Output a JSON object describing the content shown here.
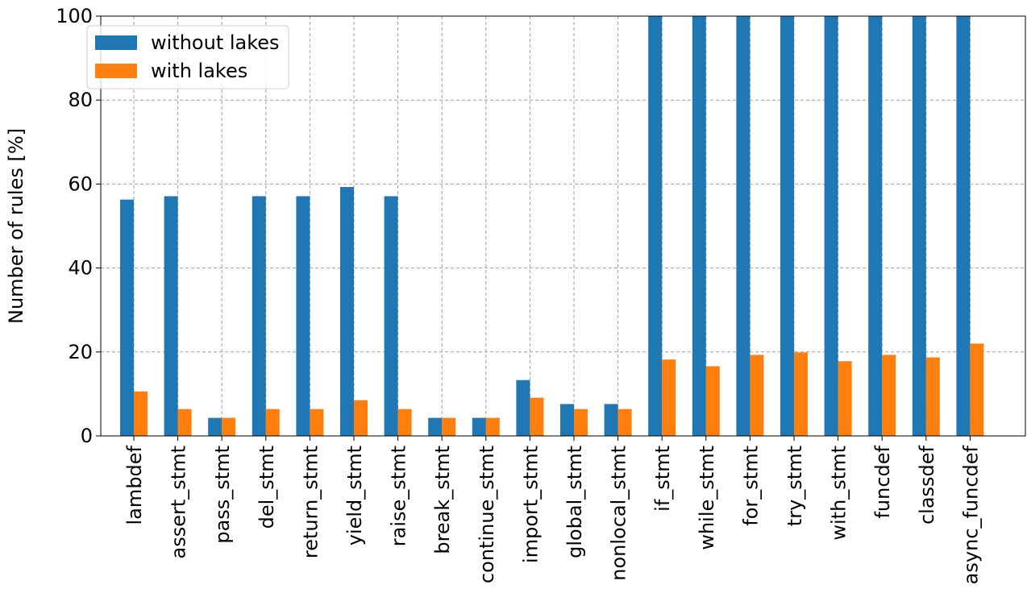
{
  "chart_data": {
    "type": "bar",
    "ylabel": "Number of rules [%]",
    "ylim": [
      0,
      100
    ],
    "yticks": [
      0,
      20,
      40,
      60,
      80,
      100
    ],
    "grid": true,
    "legend_position": "top-left",
    "categories": [
      "lambdef",
      "assert_stmt",
      "pass_stmt",
      "del_stmt",
      "return_stmt",
      "yield_stmt",
      "raise_stmt",
      "break_stmt",
      "continue_stmt",
      "import_stmt",
      "global_stmt",
      "nonlocal_stmt",
      "if_stmt",
      "while_stmt",
      "for_stmt",
      "try_stmt",
      "with_stmt",
      "funcdef",
      "classdef",
      "async_funcdef"
    ],
    "series": [
      {
        "name": "without lakes",
        "color": "#1f77b4",
        "values": [
          56.3,
          57.1,
          4.3,
          57.1,
          57.1,
          59.3,
          57.1,
          4.3,
          4.3,
          13.3,
          7.6,
          7.6,
          100,
          100,
          100,
          100,
          100,
          100,
          100,
          100
        ]
      },
      {
        "name": "with lakes",
        "color": "#ff7f0e",
        "values": [
          10.6,
          6.4,
          4.3,
          6.4,
          6.4,
          8.5,
          6.4,
          4.3,
          4.3,
          9.1,
          6.4,
          6.4,
          18.2,
          16.6,
          19.3,
          19.9,
          17.8,
          19.3,
          18.7,
          22.0
        ]
      }
    ]
  }
}
